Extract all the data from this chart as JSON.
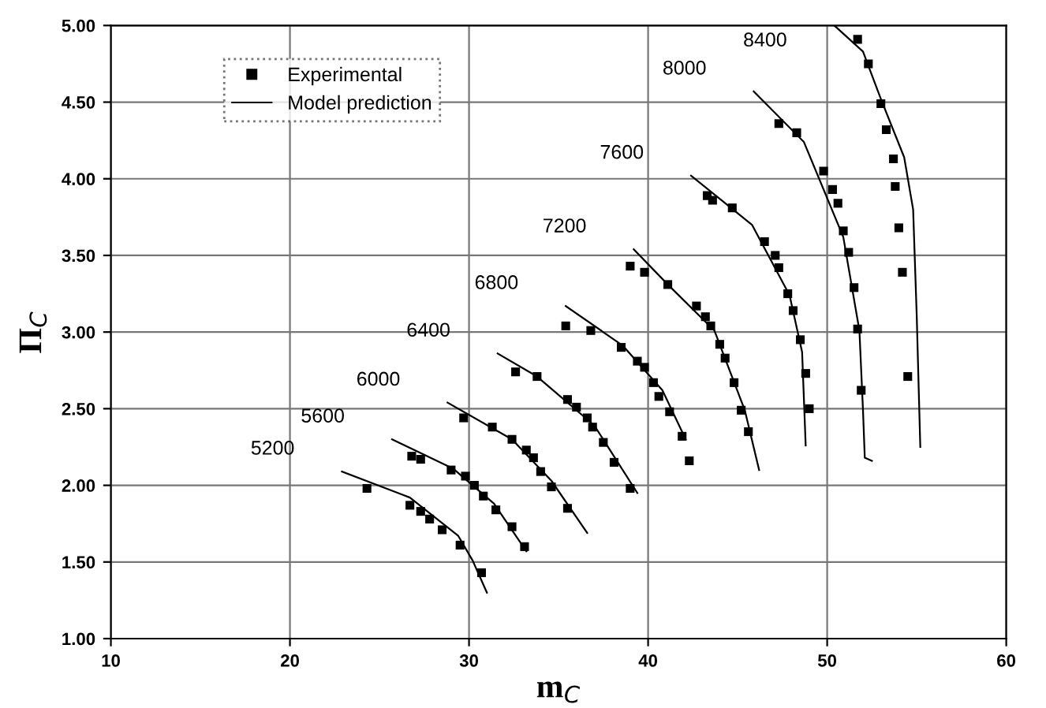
{
  "chart_data": {
    "type": "scatter",
    "xlabel": "m$_{C}$",
    "ylabel": "Π$_{C}$",
    "xlim": [
      10,
      60
    ],
    "ylim": [
      1,
      5
    ],
    "xticks": [
      10,
      20,
      30,
      40,
      50,
      60
    ],
    "yticks": [
      {
        "value": 1,
        "label": "1.00"
      },
      {
        "value": 1.5,
        "label": "1.50"
      },
      {
        "value": 2,
        "label": "2.00"
      },
      {
        "value": 2.5,
        "label": "2.50"
      },
      {
        "value": 3,
        "label": "3.00"
      },
      {
        "value": 3.5,
        "label": "3.50"
      },
      {
        "value": 4,
        "label": "4.00"
      },
      {
        "value": 4.5,
        "label": "4.50"
      },
      {
        "value": 5,
        "label": "5.00"
      }
    ],
    "grid": true,
    "legend": "top left",
    "series": [
      {
        "name": "Experimental",
        "marker": "square",
        "color": "#000000",
        "x": [
          24.3,
          26.7,
          27.3,
          27.8,
          28.5,
          29.5,
          30.7
        ],
        "values": [
          1.98,
          1.87,
          1.83,
          1.78,
          1.71,
          1.61,
          1.43
        ]
      },
      {
        "marker": "square",
        "color": "#000000",
        "x": [
          26.8,
          27.3,
          29.0,
          29.8,
          30.3,
          30.8,
          31.5,
          32.4,
          33.1
        ],
        "values": [
          2.19,
          2.17,
          2.1,
          2.06,
          2.0,
          1.93,
          1.84,
          1.73,
          1.6
        ]
      },
      {
        "marker": "square",
        "color": "#000000",
        "x": [
          29.7,
          31.3,
          32.4,
          33.2,
          33.6,
          34.0,
          34.6,
          35.5
        ],
        "values": [
          2.44,
          2.38,
          2.3,
          2.23,
          2.18,
          2.09,
          1.99,
          1.85
        ]
      },
      {
        "marker": "square",
        "color": "#000000",
        "x": [
          32.6,
          33.8,
          35.5,
          36.0,
          36.6,
          36.9,
          37.5,
          38.1,
          39.0
        ],
        "values": [
          2.74,
          2.71,
          2.56,
          2.51,
          2.44,
          2.38,
          2.28,
          2.15,
          1.98
        ]
      },
      {
        "marker": "square",
        "color": "#000000",
        "x": [
          35.4,
          36.8,
          38.5,
          39.4,
          39.8,
          40.3,
          40.6,
          41.2,
          41.9,
          42.3
        ],
        "values": [
          3.04,
          3.01,
          2.9,
          2.81,
          2.77,
          2.67,
          2.58,
          2.48,
          2.32,
          2.16
        ]
      },
      {
        "marker": "square",
        "color": "#000000",
        "x": [
          39.0,
          39.8,
          41.1,
          42.7,
          43.2,
          43.5,
          44.0,
          44.3,
          44.8,
          45.2,
          45.6
        ],
        "values": [
          3.43,
          3.39,
          3.31,
          3.17,
          3.1,
          3.04,
          2.92,
          2.83,
          2.67,
          2.49,
          2.35
        ]
      },
      {
        "marker": "square",
        "color": "#000000",
        "x": [
          43.3,
          43.6,
          44.7,
          46.5,
          47.1,
          47.3,
          47.8,
          48.1,
          48.5,
          48.8,
          49.0
        ],
        "values": [
          3.89,
          3.86,
          3.81,
          3.59,
          3.5,
          3.42,
          3.25,
          3.14,
          2.95,
          2.73,
          2.5
        ]
      },
      {
        "marker": "square",
        "color": "#000000",
        "x": [
          47.3,
          48.3,
          49.8,
          50.3,
          50.6,
          50.9,
          51.2,
          51.5,
          51.7,
          51.9
        ],
        "values": [
          4.36,
          4.3,
          4.05,
          3.93,
          3.84,
          3.66,
          3.52,
          3.29,
          3.02,
          2.62
        ]
      },
      {
        "marker": "square",
        "color": "#000000",
        "x": [
          51.7,
          52.3,
          53.0,
          53.3,
          53.7,
          53.8,
          54.0,
          54.2,
          54.5
        ],
        "values": [
          4.91,
          4.75,
          4.49,
          4.32,
          4.13,
          3.95,
          3.68,
          3.39,
          2.71
        ]
      },
      {
        "name": "Model prediction",
        "type": "line",
        "color": "#000000",
        "x": [
          22.9,
          26.7,
          29.4,
          30.2,
          31.0
        ],
        "values": [
          2.09,
          1.92,
          1.67,
          1.51,
          1.3
        ]
      },
      {
        "type": "line",
        "color": "#000000",
        "x": [
          25.7,
          29.1,
          31.4,
          33.2
        ],
        "values": [
          2.3,
          2.11,
          1.88,
          1.57
        ]
      },
      {
        "type": "line",
        "color": "#000000",
        "x": [
          28.8,
          32.4,
          34.6,
          36.6
        ],
        "values": [
          2.54,
          2.3,
          2.03,
          1.69
        ]
      },
      {
        "type": "line",
        "color": "#000000",
        "x": [
          31.6,
          33.8,
          37.0,
          39.4
        ],
        "values": [
          2.86,
          2.71,
          2.39,
          1.95
        ]
      },
      {
        "type": "line",
        "color": "#000000",
        "x": [
          35.4,
          38.6,
          40.8,
          42.1
        ],
        "values": [
          3.17,
          2.91,
          2.62,
          2.3
        ]
      },
      {
        "type": "line",
        "color": "#000000",
        "x": [
          39.2,
          41.1,
          43.7,
          45.4,
          46.2
        ],
        "values": [
          3.54,
          3.31,
          3.01,
          2.49,
          2.1
        ]
      },
      {
        "type": "line",
        "color": "#000000",
        "x": [
          42.4,
          45.8,
          47.9,
          48.6,
          48.8
        ],
        "values": [
          4.02,
          3.7,
          3.24,
          2.87,
          2.26
        ]
      },
      {
        "type": "line",
        "color": "#000000",
        "x": [
          45.9,
          48.7,
          50.9,
          51.8,
          52.0,
          52.1,
          52.5
        ],
        "values": [
          4.57,
          4.24,
          3.62,
          3.01,
          2.49,
          2.18,
          2.16
        ]
      },
      {
        "type": "line",
        "color": "#000000",
        "x": [
          50.4,
          52.0,
          53.0,
          54.3,
          54.8,
          55.0,
          55.2
        ],
        "values": [
          5.0,
          4.83,
          4.52,
          4.14,
          3.8,
          3.11,
          2.25
        ]
      }
    ],
    "annotations": [
      "5200",
      "5600",
      "6000",
      "6400",
      "6800",
      "7200",
      "7600",
      "8000",
      "8400"
    ]
  }
}
